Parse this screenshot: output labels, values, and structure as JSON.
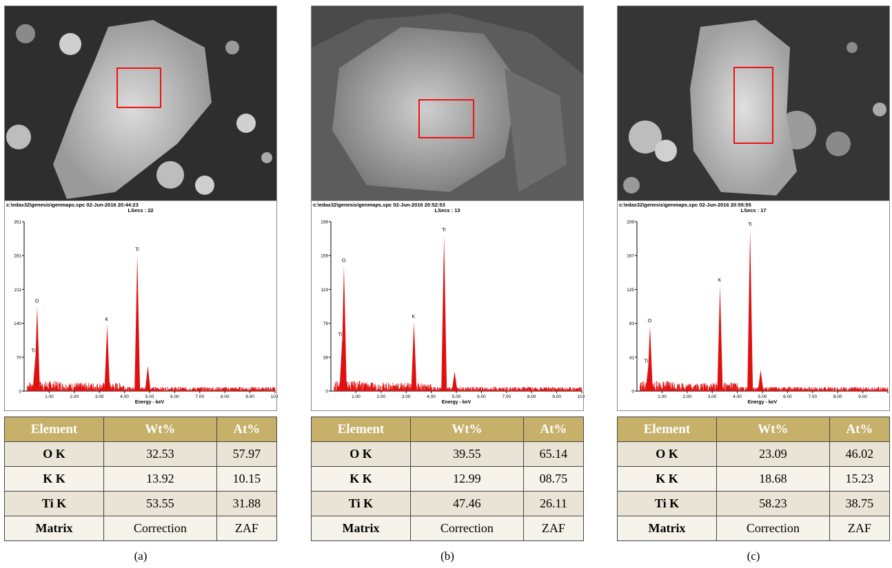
{
  "panels": [
    {
      "caption": "(a)",
      "eds_header": "c:\\edax32\\genesis\\genmaps.spc  02-Jun-2016 20:44:23",
      "lsecs": "LSecs : 22",
      "xlabel": "Energy - keV",
      "table": {
        "headers": [
          "Element",
          "Wt%",
          "At%"
        ],
        "rows": [
          [
            "O K",
            "32.53",
            "57.97"
          ],
          [
            "K K",
            "13.92",
            "10.15"
          ],
          [
            "Ti K",
            "53.55",
            "31.88"
          ],
          [
            "Matrix",
            "Correction",
            "ZAF"
          ]
        ]
      }
    },
    {
      "caption": "(b)",
      "eds_header": "c:\\edax32\\genesis\\genmaps.spc  02-Jun-2016 20:52:53",
      "lsecs": "LSecs : 13",
      "xlabel": "Energy - keV",
      "table": {
        "headers": [
          "Element",
          "Wt%",
          "At%"
        ],
        "rows": [
          [
            "O K",
            "39.55",
            "65.14"
          ],
          [
            "K K",
            "12.99",
            "08.75"
          ],
          [
            "Ti K",
            "47.46",
            "26.11"
          ],
          [
            "Matrix",
            "Correction",
            "ZAF"
          ]
        ]
      }
    },
    {
      "caption": "(c)",
      "eds_header": "c:\\edax32\\genesis\\genmaps.spc  02-Jun-2016 20:55:55",
      "lsecs": "LSecs : 17",
      "xlabel": "Energy - keV",
      "table": {
        "headers": [
          "Element",
          "Wt%",
          "At%"
        ],
        "rows": [
          [
            "O K",
            "23.09",
            "46.02"
          ],
          [
            "K K",
            "18.68",
            "15.23"
          ],
          [
            "Ti K",
            "58.23",
            "38.75"
          ],
          [
            "Matrix",
            "Correction",
            "ZAF"
          ]
        ]
      }
    }
  ],
  "chart_data": [
    {
      "type": "line",
      "title": "",
      "xlabel": "Energy - keV",
      "ylabel": "",
      "xlim": [
        0,
        10
      ],
      "ylim": [
        0,
        351
      ],
      "x_ticks": [
        "1.00",
        "2.00",
        "3.00",
        "4.00",
        "5.00",
        "6.00",
        "7.00",
        "8.00",
        "9.00",
        "10.0"
      ],
      "y_ticks": [
        "0",
        "70",
        "140",
        "211",
        "281",
        "351"
      ],
      "peaks": [
        {
          "label": "O",
          "x": 0.52,
          "y": 175
        },
        {
          "label": "Ti",
          "x": 0.45,
          "y": 72
        },
        {
          "label": "K",
          "x": 3.31,
          "y": 137
        },
        {
          "label": "Ti",
          "x": 4.51,
          "y": 282
        },
        {
          "label": "",
          "x": 4.93,
          "y": 52
        }
      ],
      "color": "#e01010"
    },
    {
      "type": "line",
      "title": "",
      "xlabel": "Energy - keV",
      "ylabel": "",
      "xlim": [
        0,
        10
      ],
      "ylim": [
        0,
        199
      ],
      "x_ticks": [
        "1.00",
        "2.00",
        "3.00",
        "4.00",
        "5.00",
        "6.00",
        "7.00",
        "8.00",
        "9.00",
        "10.0"
      ],
      "y_ticks": [
        "0",
        "39",
        "79",
        "119",
        "159",
        "199"
      ],
      "peaks": [
        {
          "label": "O",
          "x": 0.52,
          "y": 147
        },
        {
          "label": "Ti",
          "x": 0.45,
          "y": 60
        },
        {
          "label": "K",
          "x": 3.31,
          "y": 81
        },
        {
          "label": "Ti",
          "x": 4.51,
          "y": 183
        },
        {
          "label": "",
          "x": 4.93,
          "y": 23
        }
      ],
      "color": "#e01010"
    },
    {
      "type": "line",
      "title": "",
      "xlabel": "Energy - keV",
      "ylabel": "",
      "xlim": [
        0,
        10
      ],
      "ylim": [
        0,
        209
      ],
      "x_ticks": [
        "1.00",
        "2.00",
        "3.00",
        "4.00",
        "5.00",
        "6.00",
        "7.00",
        "8.00",
        "9.00",
        ""
      ],
      "y_ticks": [
        "0",
        "41",
        "83",
        "125",
        "167",
        "209"
      ],
      "peaks": [
        {
          "label": "O",
          "x": 0.52,
          "y": 80
        },
        {
          "label": "Ti",
          "x": 0.45,
          "y": 30
        },
        {
          "label": "K",
          "x": 3.31,
          "y": 130
        },
        {
          "label": "Ti",
          "x": 4.51,
          "y": 199
        },
        {
          "label": "",
          "x": 4.93,
          "y": 26
        }
      ],
      "color": "#e01010"
    }
  ]
}
